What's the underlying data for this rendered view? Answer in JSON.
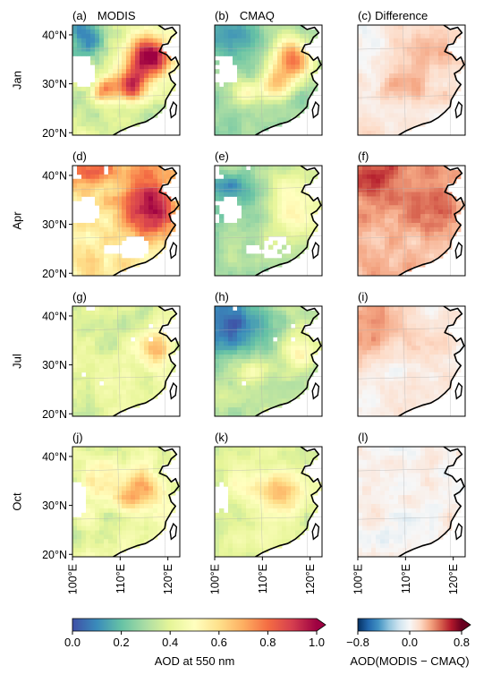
{
  "chart_data": {
    "type": "heatmap",
    "columns": [
      {
        "key": "modis",
        "title": "MODIS"
      },
      {
        "key": "cmaq",
        "title": "CMAQ"
      },
      {
        "key": "diff",
        "title": "Difference"
      }
    ],
    "rows": [
      {
        "month": "Jan",
        "panels": [
          "(a)",
          "(b)",
          "(c)"
        ]
      },
      {
        "month": "Apr",
        "panels": [
          "(d)",
          "(e)",
          "(f)"
        ]
      },
      {
        "month": "Jul",
        "panels": [
          "(g)",
          "(h)",
          "(i)"
        ]
      },
      {
        "month": "Oct",
        "panels": [
          "(j)",
          "(k)",
          "(l)"
        ]
      }
    ],
    "lat_ticks": [
      {
        "value": 40,
        "label": "40°N"
      },
      {
        "value": 30,
        "label": "30°N"
      },
      {
        "value": 20,
        "label": "20°N"
      }
    ],
    "lon_ticks": [
      {
        "value": 100,
        "label": "100°E"
      },
      {
        "value": 110,
        "label": "110°E"
      },
      {
        "value": 120,
        "label": "120°E"
      }
    ],
    "lon_range": [
      100,
      122.5
    ],
    "lat_range": [
      19.5,
      42
    ],
    "colorbar_aod": {
      "label": "AOD at 550 nm",
      "min": 0.0,
      "max": 1.0,
      "extend": "max",
      "ticks": [
        0.0,
        0.2,
        0.4,
        0.6,
        0.8,
        1.0
      ],
      "tick_labels": [
        "0.0",
        "0.2",
        "0.4",
        "0.6",
        "0.8",
        "1.0"
      ],
      "colormap": "Spectral_r",
      "colors": [
        "#3f4fa6",
        "#3a8cbb",
        "#66c2a5",
        "#abdda4",
        "#e6f598",
        "#ffffbf",
        "#fee08b",
        "#fdae61",
        "#f46d43",
        "#d53e4f",
        "#9e0142"
      ]
    },
    "colorbar_diff": {
      "label": "AOD(MODIS − CMAQ)",
      "min": -0.8,
      "max": 0.8,
      "extend": "max",
      "ticks": [
        -0.8,
        0.0,
        0.8
      ],
      "tick_labels": [
        "−0.8",
        "0.0",
        "0.8"
      ],
      "colormap": "RdBu_r",
      "colors": [
        "#053061",
        "#2166ac",
        "#4393c3",
        "#92c5de",
        "#d1e5f0",
        "#f7f7f7",
        "#fddbc7",
        "#f4a582",
        "#d6604d",
        "#b2182b",
        "#67001f"
      ]
    }
  }
}
